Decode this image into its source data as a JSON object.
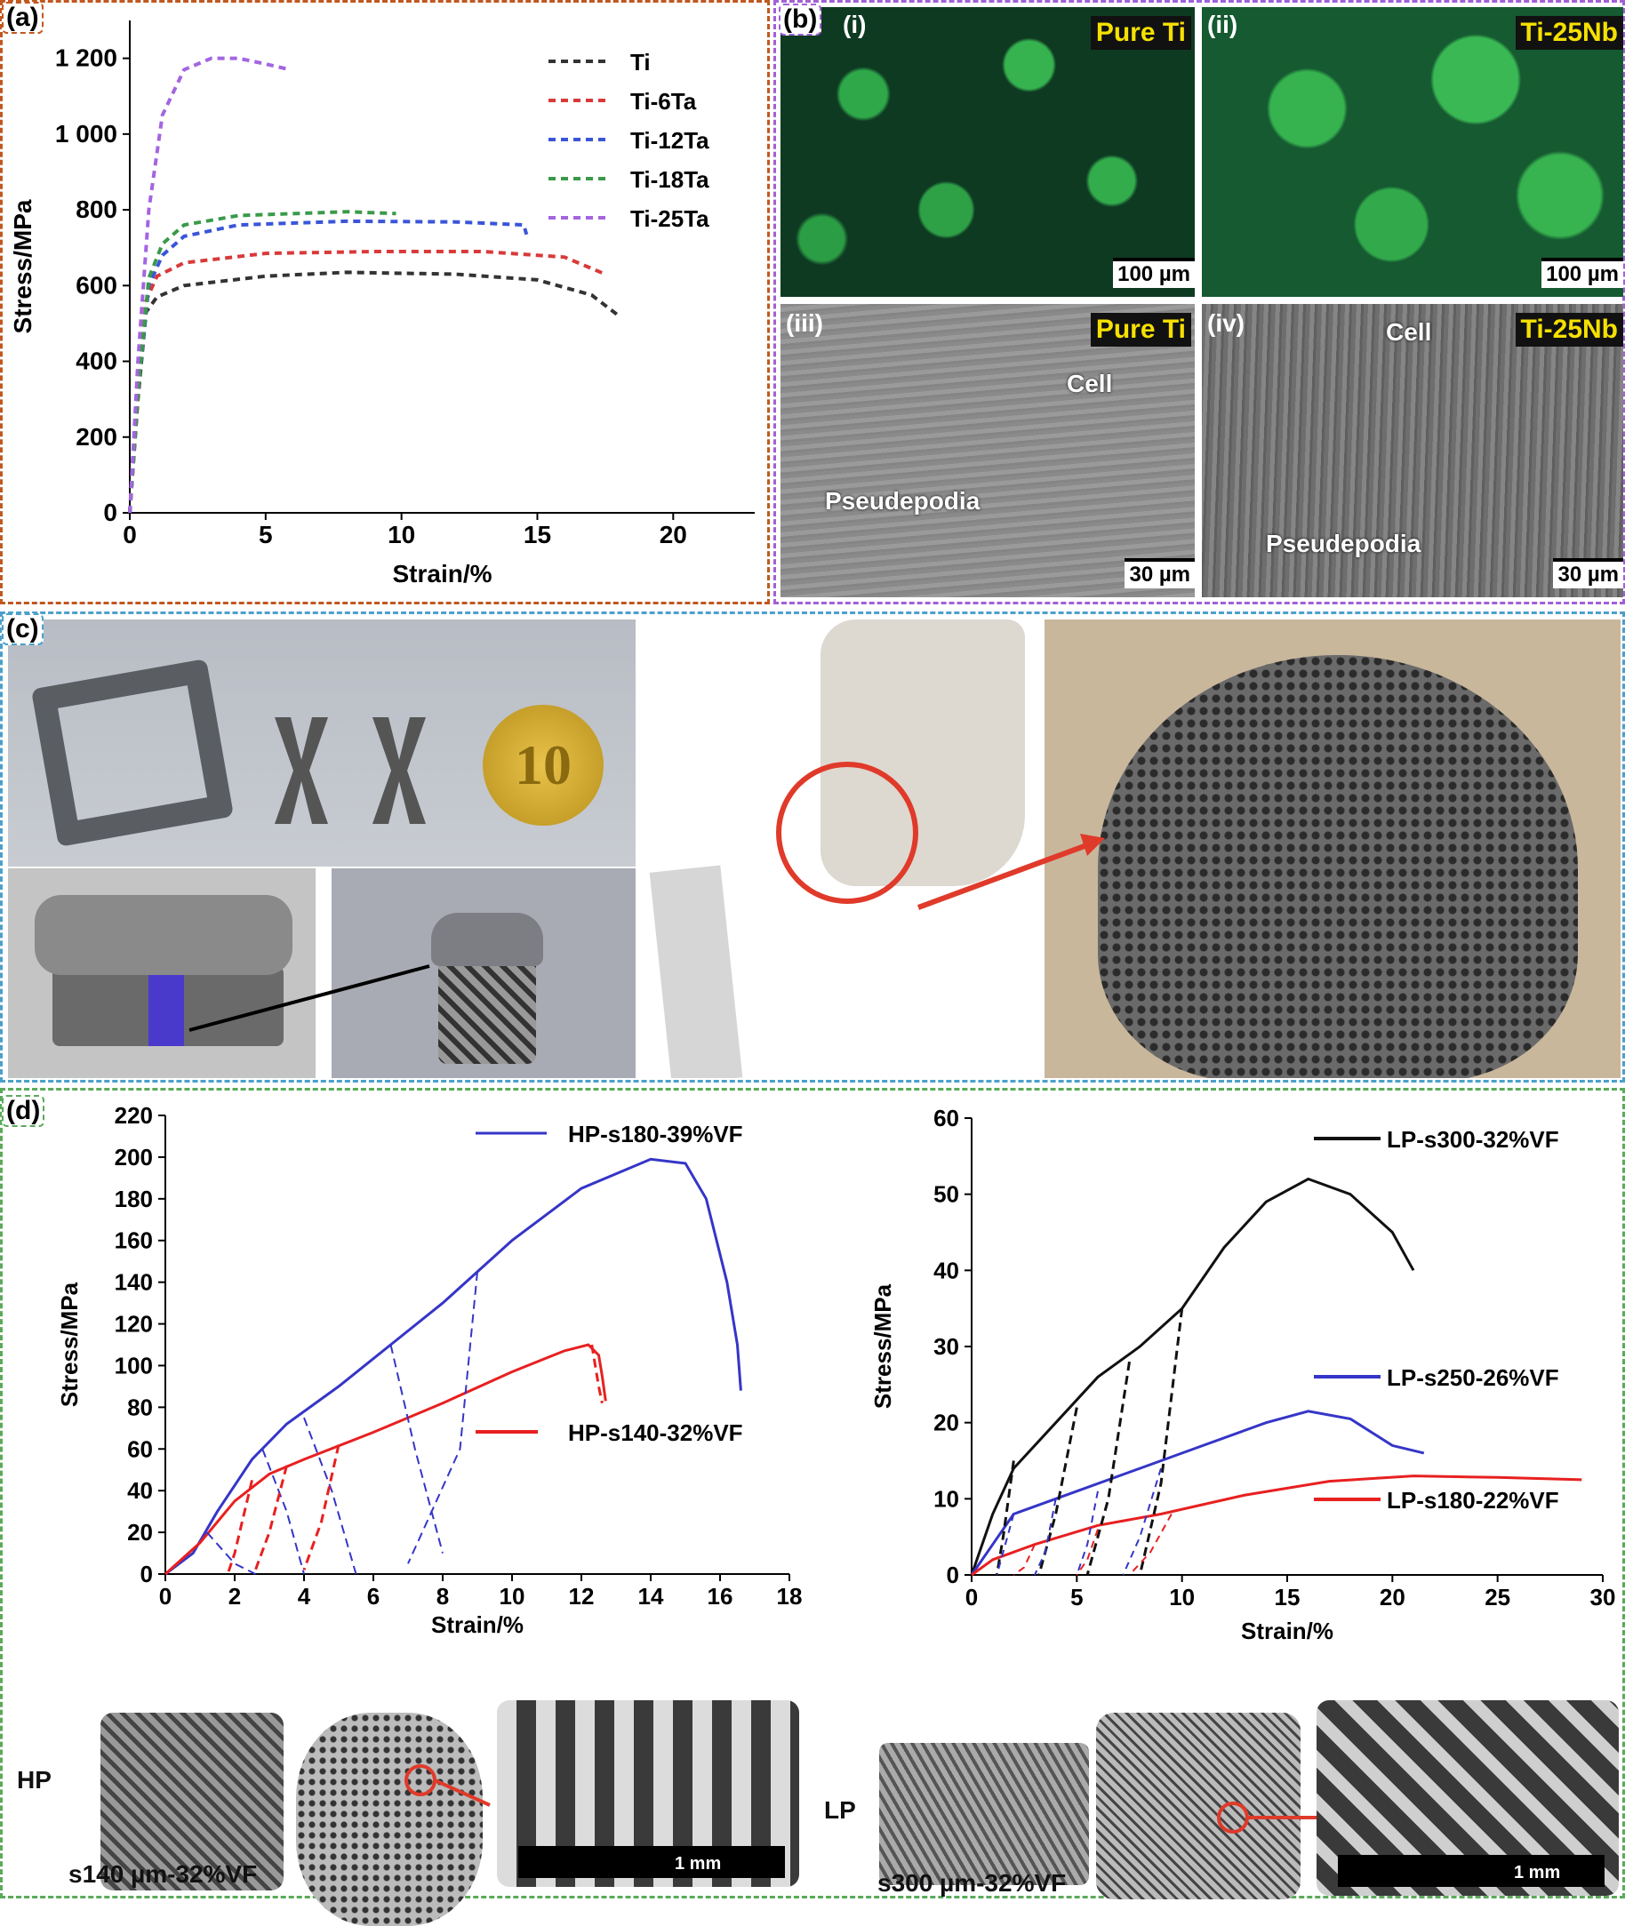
{
  "panels": {
    "a": "(a)",
    "b": "(b)",
    "c": "(c)",
    "d": "(d)"
  },
  "chart_a": {
    "type": "line",
    "xlabel": "Strain/%",
    "ylabel": "Stress/MPa",
    "xlim": [
      0,
      23
    ],
    "ylim": [
      0,
      1300
    ],
    "xticks": [
      0,
      5,
      10,
      15,
      20
    ],
    "yticks": [
      0,
      200,
      400,
      600,
      800,
      1000,
      1200
    ],
    "ytick_labels": [
      "0",
      "200",
      "400",
      "600",
      "800",
      "1 000",
      "1 200"
    ],
    "legend": "top-right",
    "series": [
      {
        "name": "Ti",
        "color": "#333333",
        "points": [
          [
            0,
            0
          ],
          [
            0.3,
            300
          ],
          [
            0.6,
            530
          ],
          [
            1,
            570
          ],
          [
            2,
            600
          ],
          [
            5,
            625
          ],
          [
            8,
            635
          ],
          [
            12,
            630
          ],
          [
            15,
            615
          ],
          [
            17,
            575
          ],
          [
            18,
            520
          ]
        ]
      },
      {
        "name": "Ti-6Ta",
        "color": "#d83a3a",
        "points": [
          [
            0,
            0
          ],
          [
            0.3,
            310
          ],
          [
            0.6,
            560
          ],
          [
            1,
            625
          ],
          [
            2,
            660
          ],
          [
            5,
            685
          ],
          [
            9,
            690
          ],
          [
            13,
            690
          ],
          [
            16,
            675
          ],
          [
            17.5,
            630
          ]
        ]
      },
      {
        "name": "Ti-12Ta",
        "color": "#3a55d8",
        "points": [
          [
            0,
            0
          ],
          [
            0.3,
            320
          ],
          [
            0.7,
            600
          ],
          [
            1.2,
            680
          ],
          [
            2,
            730
          ],
          [
            4,
            760
          ],
          [
            8,
            770
          ],
          [
            12,
            768
          ],
          [
            14.5,
            760
          ],
          [
            14.6,
            735
          ]
        ]
      },
      {
        "name": "Ti-18Ta",
        "color": "#3a9a4a",
        "points": [
          [
            0,
            0
          ],
          [
            0.3,
            320
          ],
          [
            0.7,
            620
          ],
          [
            1.2,
            710
          ],
          [
            2,
            760
          ],
          [
            4,
            785
          ],
          [
            8,
            795
          ],
          [
            9.8,
            790
          ]
        ]
      },
      {
        "name": "Ti-25Ta",
        "color": "#a465e0",
        "points": [
          [
            0,
            0
          ],
          [
            0.3,
            400
          ],
          [
            0.7,
            800
          ],
          [
            1.2,
            1050
          ],
          [
            2,
            1170
          ],
          [
            3,
            1200
          ],
          [
            4,
            1200
          ],
          [
            5,
            1185
          ],
          [
            5.9,
            1170
          ]
        ]
      }
    ]
  },
  "chart_d1": {
    "type": "line",
    "xlabel": "Strain/%",
    "ylabel": "Stress/MPa",
    "xlim": [
      0,
      18
    ],
    "ylim": [
      0,
      220
    ],
    "xticks": [
      0,
      2,
      4,
      6,
      8,
      10,
      12,
      14,
      16,
      18
    ],
    "yticks": [
      0,
      20,
      40,
      60,
      80,
      100,
      120,
      140,
      160,
      180,
      200,
      220
    ],
    "series": [
      {
        "name": "HP-s180-39%VF",
        "color": "#3535c8",
        "points": [
          [
            0,
            0
          ],
          [
            0.8,
            10
          ],
          [
            1.5,
            30
          ],
          [
            2.5,
            55
          ],
          [
            3.5,
            72
          ],
          [
            5,
            90
          ],
          [
            6.5,
            110
          ],
          [
            8,
            130
          ],
          [
            10,
            160
          ],
          [
            12,
            185
          ],
          [
            14,
            199
          ],
          [
            15,
            197
          ],
          [
            15.6,
            180
          ],
          [
            16.2,
            140
          ],
          [
            16.5,
            110
          ],
          [
            16.6,
            88
          ]
        ]
      },
      {
        "name": "HP-s140-32%VF",
        "color": "#e82020",
        "points": [
          [
            0,
            0
          ],
          [
            1,
            15
          ],
          [
            2,
            35
          ],
          [
            3,
            48
          ],
          [
            4,
            55
          ],
          [
            6,
            68
          ],
          [
            8,
            82
          ],
          [
            10,
            97
          ],
          [
            11.5,
            107
          ],
          [
            12.2,
            110
          ],
          [
            12.5,
            105
          ],
          [
            12.6,
            95
          ],
          [
            12.7,
            83
          ]
        ]
      }
    ],
    "labels": [
      "HP-s180-39%VF",
      "HP-s140-32%VF"
    ]
  },
  "chart_d2": {
    "type": "line",
    "xlabel": "Strain/%",
    "ylabel": "Stress/MPa",
    "xlim": [
      0,
      30
    ],
    "ylim": [
      0,
      60
    ],
    "xticks": [
      0,
      5,
      10,
      15,
      20,
      25,
      30
    ],
    "yticks": [
      0,
      10,
      20,
      30,
      40,
      50,
      60
    ],
    "series": [
      {
        "name": "LP-s300-32%VF",
        "color": "#111111",
        "points": [
          [
            0,
            0
          ],
          [
            1,
            8
          ],
          [
            2,
            14
          ],
          [
            4,
            20
          ],
          [
            6,
            26
          ],
          [
            8,
            30
          ],
          [
            10,
            35
          ],
          [
            12,
            43
          ],
          [
            14,
            49
          ],
          [
            16,
            52
          ],
          [
            18,
            50
          ],
          [
            20,
            45
          ],
          [
            21,
            40
          ]
        ]
      },
      {
        "name": "LP-s250-26%VF",
        "color": "#3535c8",
        "points": [
          [
            0,
            0
          ],
          [
            1,
            4
          ],
          [
            2,
            8
          ],
          [
            5,
            11
          ],
          [
            8,
            14
          ],
          [
            11,
            17
          ],
          [
            14,
            20
          ],
          [
            16,
            21.5
          ],
          [
            18,
            20.5
          ],
          [
            20,
            17
          ],
          [
            21.5,
            16
          ]
        ]
      },
      {
        "name": "LP-s180-22%VF",
        "color": "#e82020",
        "points": [
          [
            0,
            0
          ],
          [
            1,
            2
          ],
          [
            3,
            4
          ],
          [
            6,
            6.5
          ],
          [
            9,
            8
          ],
          [
            13,
            10.5
          ],
          [
            17,
            12.3
          ],
          [
            21,
            13
          ],
          [
            25,
            12.8
          ],
          [
            29,
            12.5
          ]
        ]
      }
    ],
    "labels": [
      "LP-s300-32%VF",
      "LP-s250-26%VF",
      "LP-s180-22%VF"
    ]
  },
  "b": {
    "sub": [
      "(i)",
      "(ii)",
      "(iii)",
      "(iv)"
    ],
    "tags": [
      "Pure Ti",
      "Ti-25Nb",
      "Pure Ti",
      "Ti-25Nb"
    ],
    "scales": [
      "100 µm",
      "100 µm",
      "30 µm",
      "30 µm"
    ],
    "cell": "Cell",
    "pseudo": "Pseudepodia"
  },
  "c": {
    "coin": "10"
  },
  "d": {
    "hp": "HP",
    "lp": "LP",
    "hp_cap": "s140 µm-32%VF",
    "lp_cap": "s300 µm-32%VF",
    "mm": "1 mm"
  }
}
